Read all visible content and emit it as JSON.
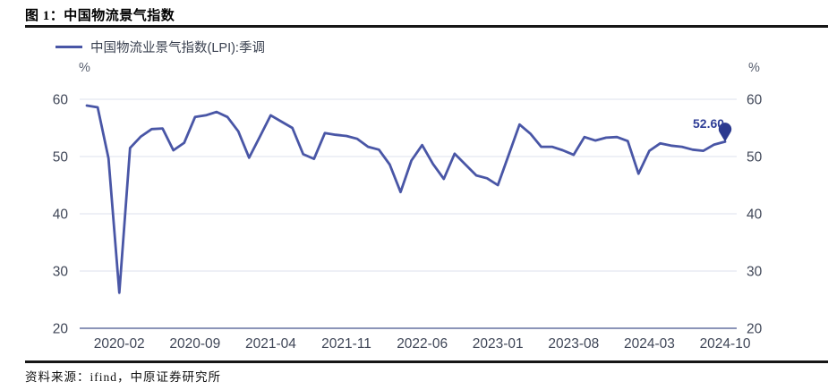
{
  "figure": {
    "title": "图 1：中国物流景气指数",
    "source": "资料来源：ifind，中原证券研究所"
  },
  "chart_data": {
    "type": "line",
    "title": "图 1：中国物流景气指数",
    "legend_label": "中国物流业景气指数(LPI):季调",
    "legend_position": "top-left",
    "unit_left": "%",
    "unit_right": "%",
    "grid": true,
    "ylim": [
      20,
      60
    ],
    "y_ticks": [
      20,
      30,
      40,
      50,
      60
    ],
    "x_tick_labels": [
      "2020-02",
      "2020-09",
      "2021-04",
      "2021-11",
      "2022-06",
      "2023-01",
      "2023-08",
      "2024-03",
      "2024-10"
    ],
    "x_tick_first_index": 3,
    "x_tick_step": 7,
    "x": [
      "2019-11",
      "2019-12",
      "2020-01",
      "2020-02",
      "2020-03",
      "2020-04",
      "2020-05",
      "2020-06",
      "2020-07",
      "2020-08",
      "2020-09",
      "2020-10",
      "2020-11",
      "2020-12",
      "2021-01",
      "2021-02",
      "2021-03",
      "2021-04",
      "2021-05",
      "2021-06",
      "2021-07",
      "2021-08",
      "2021-09",
      "2021-10",
      "2021-11",
      "2021-12",
      "2022-01",
      "2022-02",
      "2022-03",
      "2022-04",
      "2022-05",
      "2022-06",
      "2022-07",
      "2022-08",
      "2022-09",
      "2022-10",
      "2022-11",
      "2022-12",
      "2023-01",
      "2023-02",
      "2023-03",
      "2023-04",
      "2023-05",
      "2023-06",
      "2023-07",
      "2023-08",
      "2023-09",
      "2023-10",
      "2023-11",
      "2023-12",
      "2024-01",
      "2024-02",
      "2024-03",
      "2024-04",
      "2024-05",
      "2024-06",
      "2024-07",
      "2024-08",
      "2024-09",
      "2024-10"
    ],
    "series": [
      {
        "name": "中国物流业景气指数(LPI):季调",
        "values": [
          58.9,
          58.6,
          49.7,
          26.2,
          51.5,
          53.5,
          54.8,
          54.9,
          51.1,
          52.4,
          56.9,
          57.2,
          57.8,
          56.9,
          54.4,
          49.8,
          53.5,
          57.2,
          56.1,
          55.0,
          50.4,
          49.6,
          54.1,
          53.8,
          53.6,
          53.1,
          51.7,
          51.2,
          48.6,
          43.8,
          49.3,
          52.0,
          48.7,
          46.1,
          50.5,
          48.6,
          46.7,
          46.2,
          45.0,
          50.3,
          55.6,
          54.0,
          51.7,
          51.7,
          51.1,
          50.3,
          53.4,
          52.8,
          53.3,
          53.4,
          52.7,
          47.0,
          51.0,
          52.3,
          51.9,
          51.7,
          51.2,
          51.0,
          52.1,
          52.6
        ]
      }
    ],
    "last_point_label": "52.60",
    "colors": {
      "line": "#4956a6",
      "marker": "#2c3a8f",
      "label": "#2e3d96",
      "grid": "#e4e6f0",
      "axis": "#8b94b8",
      "tick_text": "#3f4657"
    }
  }
}
